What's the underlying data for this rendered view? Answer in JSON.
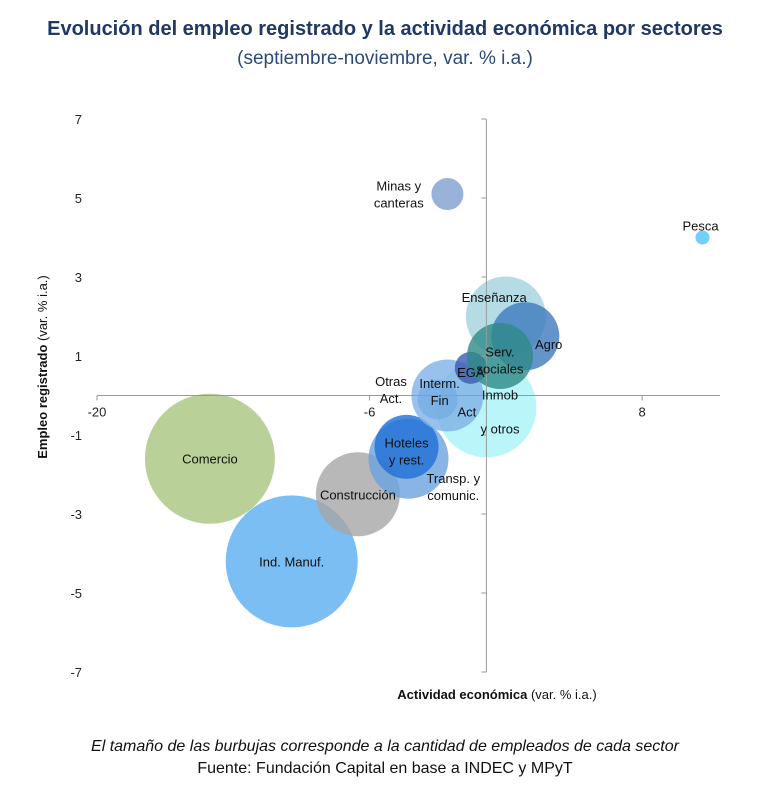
{
  "header": {
    "title": "Evolución del empleo registrado y la actividad económica por sectores",
    "subtitle": "(septiembre-noviembre, var. % i.a.)"
  },
  "footer": {
    "note": "El tamaño de las burbujas corresponde a la cantidad de empleados de cada sector",
    "source": "Fuente: Fundación Capital en base a INDEC y MPyT"
  },
  "chart_data": {
    "type": "scatter",
    "variant": "bubble",
    "xlabel_bold": "Actividad económica",
    "xlabel_rest": " (var. % i.a.)",
    "ylabel_bold": "Empleo registrado",
    "ylabel_rest": " (var. % i.a.)",
    "xlim": [
      -20,
      12
    ],
    "ylim": [
      -7,
      7
    ],
    "xticks": [
      -20,
      -6,
      8
    ],
    "yticks": [
      7,
      5,
      3,
      1,
      -1,
      -3,
      -5,
      -7
    ],
    "grid": false,
    "legend": "none",
    "series": [
      {
        "label": "Comercio",
        "x": -14.2,
        "y": -1.6,
        "size": 65,
        "color": "#a9c47f"
      },
      {
        "label": "Ind. Manuf.",
        "x": -10.0,
        "y": -4.2,
        "size": 66,
        "color": "#5aaef0"
      },
      {
        "label": "Construcción",
        "x": -6.6,
        "y": -2.5,
        "size": 42,
        "color": "#a6a6a6"
      },
      {
        "label": "Transp. y comunic.",
        "x": -4.0,
        "y": -1.6,
        "size": 40,
        "color": "#6aa2e0"
      },
      {
        "label": "Hoteles y rest.",
        "x": -4.1,
        "y": -1.3,
        "size": 32,
        "color": "#1f6fd6"
      },
      {
        "label": "Inmob y otros",
        "x": 0.0,
        "y": -0.3,
        "size": 50,
        "color": "#a8f2f7"
      },
      {
        "label": "Otras Act.",
        "x": -2.5,
        "y": -0.1,
        "size": 20,
        "color": "#4fa0dc"
      },
      {
        "label": "Interm. Fin",
        "x": -2.0,
        "y": 0.0,
        "size": 36,
        "color": "#7fb2e6"
      },
      {
        "label": "Minas y canteras",
        "x": -2.0,
        "y": 5.1,
        "size": 16,
        "color": "#7f9fd0"
      },
      {
        "label": "EGA",
        "x": -0.8,
        "y": 0.7,
        "size": 16,
        "color": "#3a5bb0"
      },
      {
        "label": "Enseñanza",
        "x": 1.0,
        "y": 2.0,
        "size": 40,
        "color": "#a3d3de"
      },
      {
        "label": "Agro",
        "x": 2.0,
        "y": 1.5,
        "size": 34,
        "color": "#3d79bd"
      },
      {
        "label": "Serv. sociales",
        "x": 0.7,
        "y": 1.0,
        "size": 33,
        "color": "#2e8a87"
      },
      {
        "label": "Pesca",
        "x": 11.1,
        "y": 4.0,
        "size": 7,
        "color": "#4fc3f7"
      }
    ],
    "labels": [
      {
        "lines": [
          "Comercio"
        ],
        "x": -14.2,
        "y": -1.6
      },
      {
        "lines": [
          "Ind. Manuf."
        ],
        "x": -10.0,
        "y": -4.2
      },
      {
        "lines": [
          "Construcción"
        ],
        "x": -6.6,
        "y": -2.5
      },
      {
        "lines": [
          "Transp. y",
          "comunic."
        ],
        "x": -1.7,
        "y": -2.3
      },
      {
        "lines": [
          "Hoteles",
          "y rest."
        ],
        "x": -4.1,
        "y": -1.4
      },
      {
        "lines": [
          "Inmob",
          "",
          "y otros"
        ],
        "x": 0.7,
        "y": -0.4
      },
      {
        "lines": [
          "Otras",
          "Act."
        ],
        "x": -4.9,
        "y": 0.15
      },
      {
        "lines": [
          "Interm.",
          "Fin"
        ],
        "x": -2.4,
        "y": 0.1
      },
      {
        "lines": [
          "Act"
        ],
        "x": -1.0,
        "y": -0.4
      },
      {
        "lines": [
          "Minas y",
          "canteras"
        ],
        "x": -4.5,
        "y": 5.1
      },
      {
        "lines": [
          "EGA"
        ],
        "x": -0.8,
        "y": 0.6
      },
      {
        "lines": [
          "Enseñanza"
        ],
        "x": 0.4,
        "y": 2.5
      },
      {
        "lines": [
          "Agro"
        ],
        "x": 3.2,
        "y": 1.3
      },
      {
        "lines": [
          "Serv.",
          "sociales"
        ],
        "x": 0.7,
        "y": 0.9
      },
      {
        "lines": [
          "Pesca"
        ],
        "x": 11.0,
        "y": 4.3
      }
    ]
  }
}
